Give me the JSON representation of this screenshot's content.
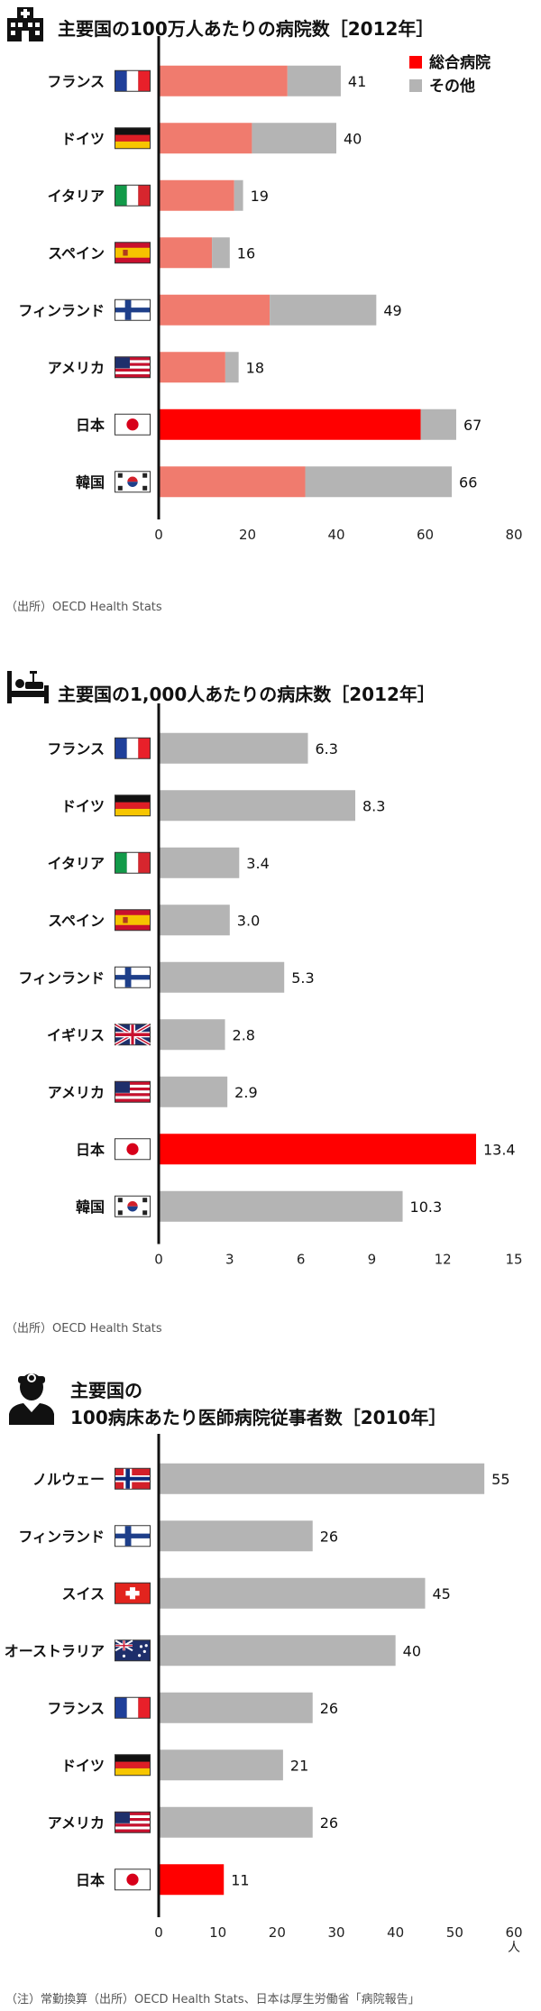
{
  "colors": {
    "general": "#f07b6e",
    "other": "#b4b4b4",
    "japan": "#ff0000",
    "axis": "#111111"
  },
  "icons": [
    "hospital-icon",
    "hospital-bed-icon",
    "doctor-icon"
  ],
  "charts": [
    {
      "title_line1": "主要国の100万人あたりの病院数［2012年］",
      "title_line2": "",
      "source": "（出所）OECD Health Stats",
      "legend": {
        "general": "総合病院",
        "other": "その他"
      },
      "unit": "",
      "chart_data": {
        "type": "bar",
        "stacked": true,
        "orientation": "horizontal",
        "categories": [
          "フランス",
          "ドイツ",
          "イタリア",
          "スペイン",
          "フィンランド",
          "アメリカ",
          "日本",
          "韓国"
        ],
        "flags": [
          "fr",
          "de",
          "it",
          "es",
          "fi",
          "us",
          "jp",
          "kr"
        ],
        "series": [
          {
            "name": "総合病院",
            "values": [
              29,
              21,
              17,
              12,
              25,
              15,
              59,
              33
            ]
          },
          {
            "name": "その他",
            "values": [
              12,
              19,
              2,
              4,
              24,
              3,
              8,
              33
            ]
          }
        ],
        "totals": [
          "41",
          "40",
          "19",
          "16",
          "49",
          "18",
          "67",
          "66"
        ],
        "highlight": "日本",
        "xlim": [
          0,
          80
        ],
        "xticks": [
          0,
          20,
          40,
          60,
          80
        ],
        "legend_position": "top-right"
      }
    },
    {
      "title_line1": "主要国の1,000人あたりの病床数［2012年］",
      "title_line2": "",
      "source": "（出所）OECD Health Stats",
      "unit": "",
      "chart_data": {
        "type": "bar",
        "orientation": "horizontal",
        "categories": [
          "フランス",
          "ドイツ",
          "イタリア",
          "スペイン",
          "フィンランド",
          "イギリス",
          "アメリカ",
          "日本",
          "韓国"
        ],
        "flags": [
          "fr",
          "de",
          "it",
          "es",
          "fi",
          "gb",
          "us",
          "jp",
          "kr"
        ],
        "values": [
          6.3,
          8.3,
          3.4,
          3.0,
          5.3,
          2.8,
          2.9,
          13.4,
          10.3
        ],
        "labels": [
          "6.3",
          "8.3",
          "3.4",
          "3.0",
          "5.3",
          "2.8",
          "2.9",
          "13.4",
          "10.3"
        ],
        "highlight": "日本",
        "xlim": [
          0,
          15
        ],
        "xticks": [
          0,
          3,
          6,
          9,
          12,
          15
        ]
      }
    },
    {
      "title_line1": "主要国の",
      "title_line2": "100病床あたり医師病院従事者数［2010年］",
      "source": "（注）常勤換算（出所）OECD Health Stats、日本は厚生労働省「病院報告」",
      "unit": "人",
      "chart_data": {
        "type": "bar",
        "orientation": "horizontal",
        "categories": [
          "ノルウェー",
          "フィンランド",
          "スイス",
          "オーストラリア",
          "フランス",
          "ドイツ",
          "アメリカ",
          "日本"
        ],
        "flags": [
          "no",
          "fi",
          "ch",
          "au",
          "fr",
          "de",
          "us",
          "jp"
        ],
        "values": [
          55,
          26,
          45,
          40,
          26,
          21,
          26,
          11
        ],
        "labels": [
          "55",
          "26",
          "45",
          "40",
          "26",
          "21",
          "26",
          "11"
        ],
        "highlight": "日本",
        "xlim": [
          0,
          60
        ],
        "xticks": [
          0,
          10,
          20,
          30,
          40,
          50,
          60
        ]
      }
    }
  ]
}
